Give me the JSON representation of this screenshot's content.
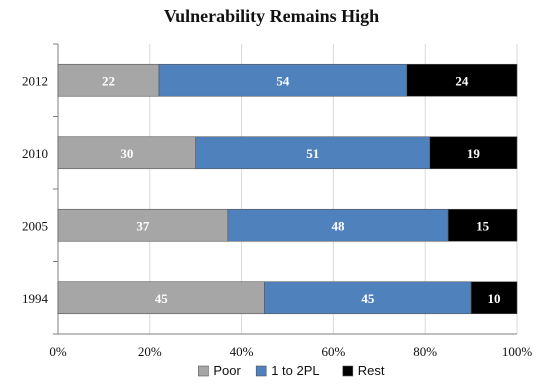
{
  "chart_data": {
    "type": "bar",
    "orientation": "horizontal",
    "stacked": true,
    "title": "Vulnerability Remains High",
    "categories": [
      "2012",
      "2010",
      "2005",
      "1994"
    ],
    "series": [
      {
        "name": "Poor",
        "values": [
          22,
          30,
          37,
          45
        ],
        "color": "#a6a6a6",
        "label_color": "#ffffff"
      },
      {
        "name": "1 to 2PL",
        "values": [
          54,
          51,
          48,
          45
        ],
        "color": "#4f81bd",
        "label_color": "#ffffff"
      },
      {
        "name": "Rest",
        "values": [
          24,
          19,
          15,
          10
        ],
        "color": "#000000",
        "label_color": "#ffffff"
      }
    ],
    "xlim": [
      0,
      100
    ],
    "x_ticks": [
      "0%",
      "20%",
      "40%",
      "60%",
      "80%",
      "100%"
    ],
    "grid": true,
    "legend_position": "bottom"
  }
}
